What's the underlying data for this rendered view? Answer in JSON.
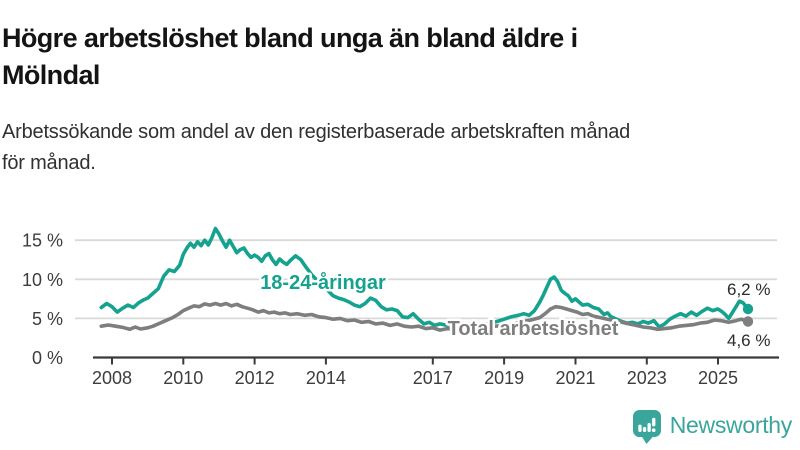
{
  "header": {
    "title_lines": [
      "Högre arbetslöshet bland unga än bland äldre i",
      "Mölndal"
    ],
    "subtitle_lines": [
      "Arbetssökande som andel av den registerbaserade arbetskraften månad",
      "för månad."
    ]
  },
  "chart_data": {
    "type": "line",
    "title": "Högre arbetslöshet bland unga än bland äldre i Mölndal",
    "subtitle": "Arbetssökande som andel av den registerbaserade arbetskraften månad för månad.",
    "unit": "%",
    "grid": true,
    "legend_position": "inline-labels-on-lines",
    "xlim": [
      2007.6,
      2026.3
    ],
    "ylim": [
      0,
      17.5
    ],
    "x_ticks": [
      {
        "year": 2008,
        "label": "2008"
      },
      {
        "year": 2010,
        "label": "2010"
      },
      {
        "year": 2012,
        "label": "2012"
      },
      {
        "year": 2014,
        "label": "2014"
      },
      {
        "year": 2017,
        "label": "2017"
      },
      {
        "year": 2019,
        "label": "2019"
      },
      {
        "year": 2021,
        "label": "2021"
      },
      {
        "year": 2023,
        "label": "2023"
      },
      {
        "year": 2025,
        "label": "2025"
      }
    ],
    "y_ticks": [
      {
        "value": 0,
        "label": "0 %"
      },
      {
        "value": 5,
        "label": "5 %"
      },
      {
        "value": 10,
        "label": "10 %"
      },
      {
        "value": 15,
        "label": "15 %"
      }
    ],
    "series": [
      {
        "name": "18-24-åringar",
        "color": "#15a28e",
        "end_label": "6,2 %",
        "last_value": 6.2,
        "points": [
          [
            2007.7,
            6.4
          ],
          [
            2007.85,
            6.9
          ],
          [
            2008,
            6.5
          ],
          [
            2008.15,
            5.8
          ],
          [
            2008.3,
            6.3
          ],
          [
            2008.45,
            6.7
          ],
          [
            2008.6,
            6.4
          ],
          [
            2008.75,
            7.0
          ],
          [
            2008.9,
            7.4
          ],
          [
            2009,
            7.6
          ],
          [
            2009.15,
            8.2
          ],
          [
            2009.3,
            8.8
          ],
          [
            2009.45,
            10.4
          ],
          [
            2009.6,
            11.2
          ],
          [
            2009.75,
            11.0
          ],
          [
            2009.9,
            11.8
          ],
          [
            2010,
            13.2
          ],
          [
            2010.1,
            14.0
          ],
          [
            2010.2,
            14.6
          ],
          [
            2010.3,
            14.1
          ],
          [
            2010.4,
            14.8
          ],
          [
            2010.5,
            14.3
          ],
          [
            2010.6,
            15.0
          ],
          [
            2010.7,
            14.4
          ],
          [
            2010.8,
            15.3
          ],
          [
            2010.9,
            16.5
          ],
          [
            2011,
            15.8
          ],
          [
            2011.1,
            14.9
          ],
          [
            2011.2,
            14.1
          ],
          [
            2011.3,
            15.0
          ],
          [
            2011.4,
            14.2
          ],
          [
            2011.5,
            13.4
          ],
          [
            2011.6,
            13.8
          ],
          [
            2011.7,
            14.0
          ],
          [
            2011.8,
            13.3
          ],
          [
            2011.9,
            12.8
          ],
          [
            2012,
            13.1
          ],
          [
            2012.1,
            12.8
          ],
          [
            2012.2,
            12.3
          ],
          [
            2012.3,
            13.0
          ],
          [
            2012.4,
            13.3
          ],
          [
            2012.5,
            12.5
          ],
          [
            2012.6,
            11.9
          ],
          [
            2012.7,
            12.6
          ],
          [
            2012.8,
            12.2
          ],
          [
            2012.9,
            11.9
          ],
          [
            2013,
            12.4
          ],
          [
            2013.15,
            13.0
          ],
          [
            2013.3,
            12.5
          ],
          [
            2013.45,
            11.5
          ],
          [
            2013.6,
            10.6
          ],
          [
            2013.75,
            9.9
          ],
          [
            2013.9,
            9.3
          ],
          [
            2014.05,
            8.6
          ],
          [
            2014.2,
            7.9
          ],
          [
            2014.35,
            7.6
          ],
          [
            2014.5,
            7.4
          ],
          [
            2014.65,
            7.1
          ],
          [
            2014.8,
            6.7
          ],
          [
            2014.95,
            6.5
          ],
          [
            2015.1,
            6.9
          ],
          [
            2015.25,
            7.6
          ],
          [
            2015.4,
            7.3
          ],
          [
            2015.55,
            6.5
          ],
          [
            2015.7,
            6.1
          ],
          [
            2015.85,
            6.2
          ],
          [
            2016,
            6.0
          ],
          [
            2016.15,
            5.2
          ],
          [
            2016.3,
            5.1
          ],
          [
            2016.45,
            5.6
          ],
          [
            2016.6,
            4.9
          ],
          [
            2016.75,
            4.3
          ],
          [
            2016.9,
            4.5
          ],
          [
            2017.05,
            4.1
          ],
          [
            2017.2,
            4.3
          ],
          [
            2017.4,
            4.1
          ],
          [
            2017.6,
            4.4
          ],
          [
            2017.8,
            4.2
          ],
          [
            2018,
            4.0
          ],
          [
            2018.2,
            4.3
          ],
          [
            2018.4,
            4.1
          ],
          [
            2018.6,
            4.4
          ],
          [
            2018.8,
            4.6
          ],
          [
            2019,
            4.9
          ],
          [
            2019.2,
            5.2
          ],
          [
            2019.4,
            5.4
          ],
          [
            2019.55,
            5.6
          ],
          [
            2019.7,
            5.4
          ],
          [
            2019.85,
            6.0
          ],
          [
            2020,
            7.1
          ],
          [
            2020.1,
            8.0
          ],
          [
            2020.2,
            9.0
          ],
          [
            2020.3,
            10.0
          ],
          [
            2020.4,
            10.3
          ],
          [
            2020.5,
            9.7
          ],
          [
            2020.6,
            8.6
          ],
          [
            2020.7,
            8.2
          ],
          [
            2020.8,
            7.9
          ],
          [
            2020.9,
            7.2
          ],
          [
            2021,
            7.5
          ],
          [
            2021.1,
            7.1
          ],
          [
            2021.2,
            6.7
          ],
          [
            2021.35,
            6.8
          ],
          [
            2021.5,
            6.4
          ],
          [
            2021.65,
            6.2
          ],
          [
            2021.8,
            5.5
          ],
          [
            2021.9,
            5.7
          ],
          [
            2022,
            5.2
          ],
          [
            2022.15,
            4.9
          ],
          [
            2022.3,
            4.6
          ],
          [
            2022.45,
            4.4
          ],
          [
            2022.6,
            4.5
          ],
          [
            2022.75,
            4.3
          ],
          [
            2022.9,
            4.6
          ],
          [
            2023.05,
            4.4
          ],
          [
            2023.2,
            4.7
          ],
          [
            2023.35,
            3.9
          ],
          [
            2023.5,
            4.3
          ],
          [
            2023.65,
            4.9
          ],
          [
            2023.8,
            5.3
          ],
          [
            2023.95,
            5.6
          ],
          [
            2024.1,
            5.3
          ],
          [
            2024.25,
            5.8
          ],
          [
            2024.4,
            5.4
          ],
          [
            2024.55,
            5.9
          ],
          [
            2024.7,
            6.3
          ],
          [
            2024.85,
            6.0
          ],
          [
            2025,
            6.2
          ],
          [
            2025.1,
            5.9
          ],
          [
            2025.2,
            5.5
          ],
          [
            2025.3,
            5.0
          ],
          [
            2025.45,
            6.1
          ],
          [
            2025.6,
            7.2
          ],
          [
            2025.7,
            7.0
          ],
          [
            2025.84,
            6.2
          ]
        ]
      },
      {
        "name": "Total arbetslöshet",
        "color": "#7e7e7e",
        "end_label": "4,6 %",
        "last_value": 4.6,
        "points": [
          [
            2007.7,
            4.0
          ],
          [
            2007.9,
            4.15
          ],
          [
            2008.1,
            4.0
          ],
          [
            2008.3,
            3.85
          ],
          [
            2008.5,
            3.6
          ],
          [
            2008.65,
            3.9
          ],
          [
            2008.8,
            3.65
          ],
          [
            2009,
            3.8
          ],
          [
            2009.15,
            4.0
          ],
          [
            2009.3,
            4.3
          ],
          [
            2009.5,
            4.7
          ],
          [
            2009.7,
            5.1
          ],
          [
            2009.85,
            5.5
          ],
          [
            2010,
            6.0
          ],
          [
            2010.15,
            6.3
          ],
          [
            2010.3,
            6.6
          ],
          [
            2010.45,
            6.5
          ],
          [
            2010.6,
            6.85
          ],
          [
            2010.75,
            6.7
          ],
          [
            2010.9,
            6.9
          ],
          [
            2011.05,
            6.7
          ],
          [
            2011.2,
            6.9
          ],
          [
            2011.35,
            6.6
          ],
          [
            2011.5,
            6.8
          ],
          [
            2011.65,
            6.5
          ],
          [
            2011.8,
            6.3
          ],
          [
            2011.95,
            6.1
          ],
          [
            2012.1,
            5.8
          ],
          [
            2012.25,
            6.0
          ],
          [
            2012.4,
            5.7
          ],
          [
            2012.55,
            5.8
          ],
          [
            2012.7,
            5.6
          ],
          [
            2012.85,
            5.7
          ],
          [
            2013,
            5.5
          ],
          [
            2013.2,
            5.6
          ],
          [
            2013.4,
            5.4
          ],
          [
            2013.6,
            5.5
          ],
          [
            2013.8,
            5.2
          ],
          [
            2014,
            5.1
          ],
          [
            2014.2,
            4.9
          ],
          [
            2014.4,
            5.0
          ],
          [
            2014.6,
            4.7
          ],
          [
            2014.8,
            4.8
          ],
          [
            2015,
            4.5
          ],
          [
            2015.2,
            4.6
          ],
          [
            2015.4,
            4.3
          ],
          [
            2015.6,
            4.4
          ],
          [
            2015.8,
            4.1
          ],
          [
            2016,
            4.3
          ],
          [
            2016.2,
            4.0
          ],
          [
            2016.4,
            3.9
          ],
          [
            2016.6,
            4.0
          ],
          [
            2016.8,
            3.7
          ],
          [
            2017,
            3.8
          ],
          [
            2017.2,
            3.5
          ],
          [
            2017.4,
            3.7
          ],
          [
            2017.6,
            3.6
          ],
          [
            2017.8,
            3.8
          ],
          [
            2018,
            3.7
          ],
          [
            2018.25,
            3.9
          ],
          [
            2018.5,
            3.8
          ],
          [
            2018.75,
            4.0
          ],
          [
            2019,
            4.1
          ],
          [
            2019.25,
            4.3
          ],
          [
            2019.5,
            4.6
          ],
          [
            2019.75,
            4.8
          ],
          [
            2020,
            5.1
          ],
          [
            2020.15,
            5.6
          ],
          [
            2020.3,
            6.2
          ],
          [
            2020.45,
            6.5
          ],
          [
            2020.6,
            6.4
          ],
          [
            2020.75,
            6.2
          ],
          [
            2020.9,
            6.0
          ],
          [
            2021.05,
            5.8
          ],
          [
            2021.2,
            5.5
          ],
          [
            2021.35,
            5.6
          ],
          [
            2021.5,
            5.3
          ],
          [
            2021.7,
            5.1
          ],
          [
            2021.9,
            4.9
          ],
          [
            2022.1,
            4.7
          ],
          [
            2022.3,
            4.5
          ],
          [
            2022.5,
            4.3
          ],
          [
            2022.7,
            4.1
          ],
          [
            2022.9,
            3.9
          ],
          [
            2023.1,
            3.8
          ],
          [
            2023.3,
            3.6
          ],
          [
            2023.5,
            3.7
          ],
          [
            2023.7,
            3.8
          ],
          [
            2023.9,
            4.0
          ],
          [
            2024.1,
            4.1
          ],
          [
            2024.3,
            4.2
          ],
          [
            2024.5,
            4.4
          ],
          [
            2024.7,
            4.5
          ],
          [
            2024.9,
            4.8
          ],
          [
            2025.1,
            4.7
          ],
          [
            2025.3,
            4.5
          ],
          [
            2025.5,
            4.7
          ],
          [
            2025.65,
            4.9
          ],
          [
            2025.84,
            4.6
          ]
        ]
      }
    ]
  },
  "footer": {
    "brand": "Newsworthy",
    "brand_color": "#3aa69b"
  }
}
